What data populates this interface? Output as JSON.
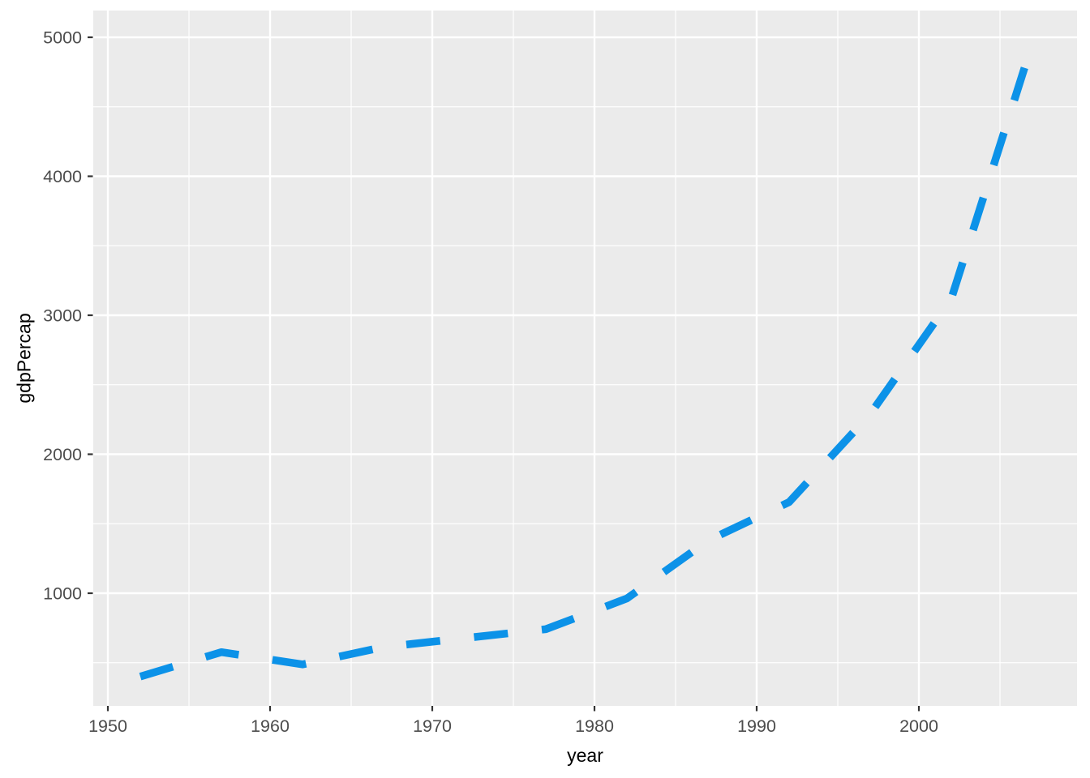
{
  "chart_data": {
    "type": "line",
    "title": "",
    "xlabel": "year",
    "ylabel": "gdpPercap",
    "series": [
      {
        "name": "gdpPercap",
        "x": [
          1952,
          1957,
          1962,
          1967,
          1972,
          1977,
          1982,
          1987,
          1992,
          1997,
          2002,
          2007
        ],
        "values": [
          400.45,
          575.99,
          487.67,
          612.7,
          676.9,
          741.24,
          962.42,
          1378.9,
          1655.78,
          2289.23,
          3119.28,
          4959.11
        ],
        "color": "#0C92E8",
        "line_style": "dashed",
        "line_width": 9.5
      }
    ],
    "x_ticks": [
      1950,
      1960,
      1970,
      1980,
      1990,
      2000
    ],
    "y_ticks": [
      1000,
      2000,
      3000,
      4000,
      5000
    ],
    "x_minor_ticks": [
      1955,
      1965,
      1975,
      1985,
      1995,
      2005
    ],
    "y_minor_ticks": [
      500,
      1500,
      2500,
      3500,
      4500
    ],
    "xlim": [
      1949.1,
      2009.75
    ],
    "ylim": [
      189.5,
      5192.5
    ],
    "grid": true,
    "legend": "none",
    "theme": {
      "panel_background": "#EBEBEB",
      "grid_major_color": "#FFFFFF",
      "grid_minor_color": "#FFFFFF",
      "tick_color": "#333333",
      "tick_label_color": "#4D4D4D",
      "axis_title_color": "#000000",
      "background": "#FFFFFF"
    }
  }
}
